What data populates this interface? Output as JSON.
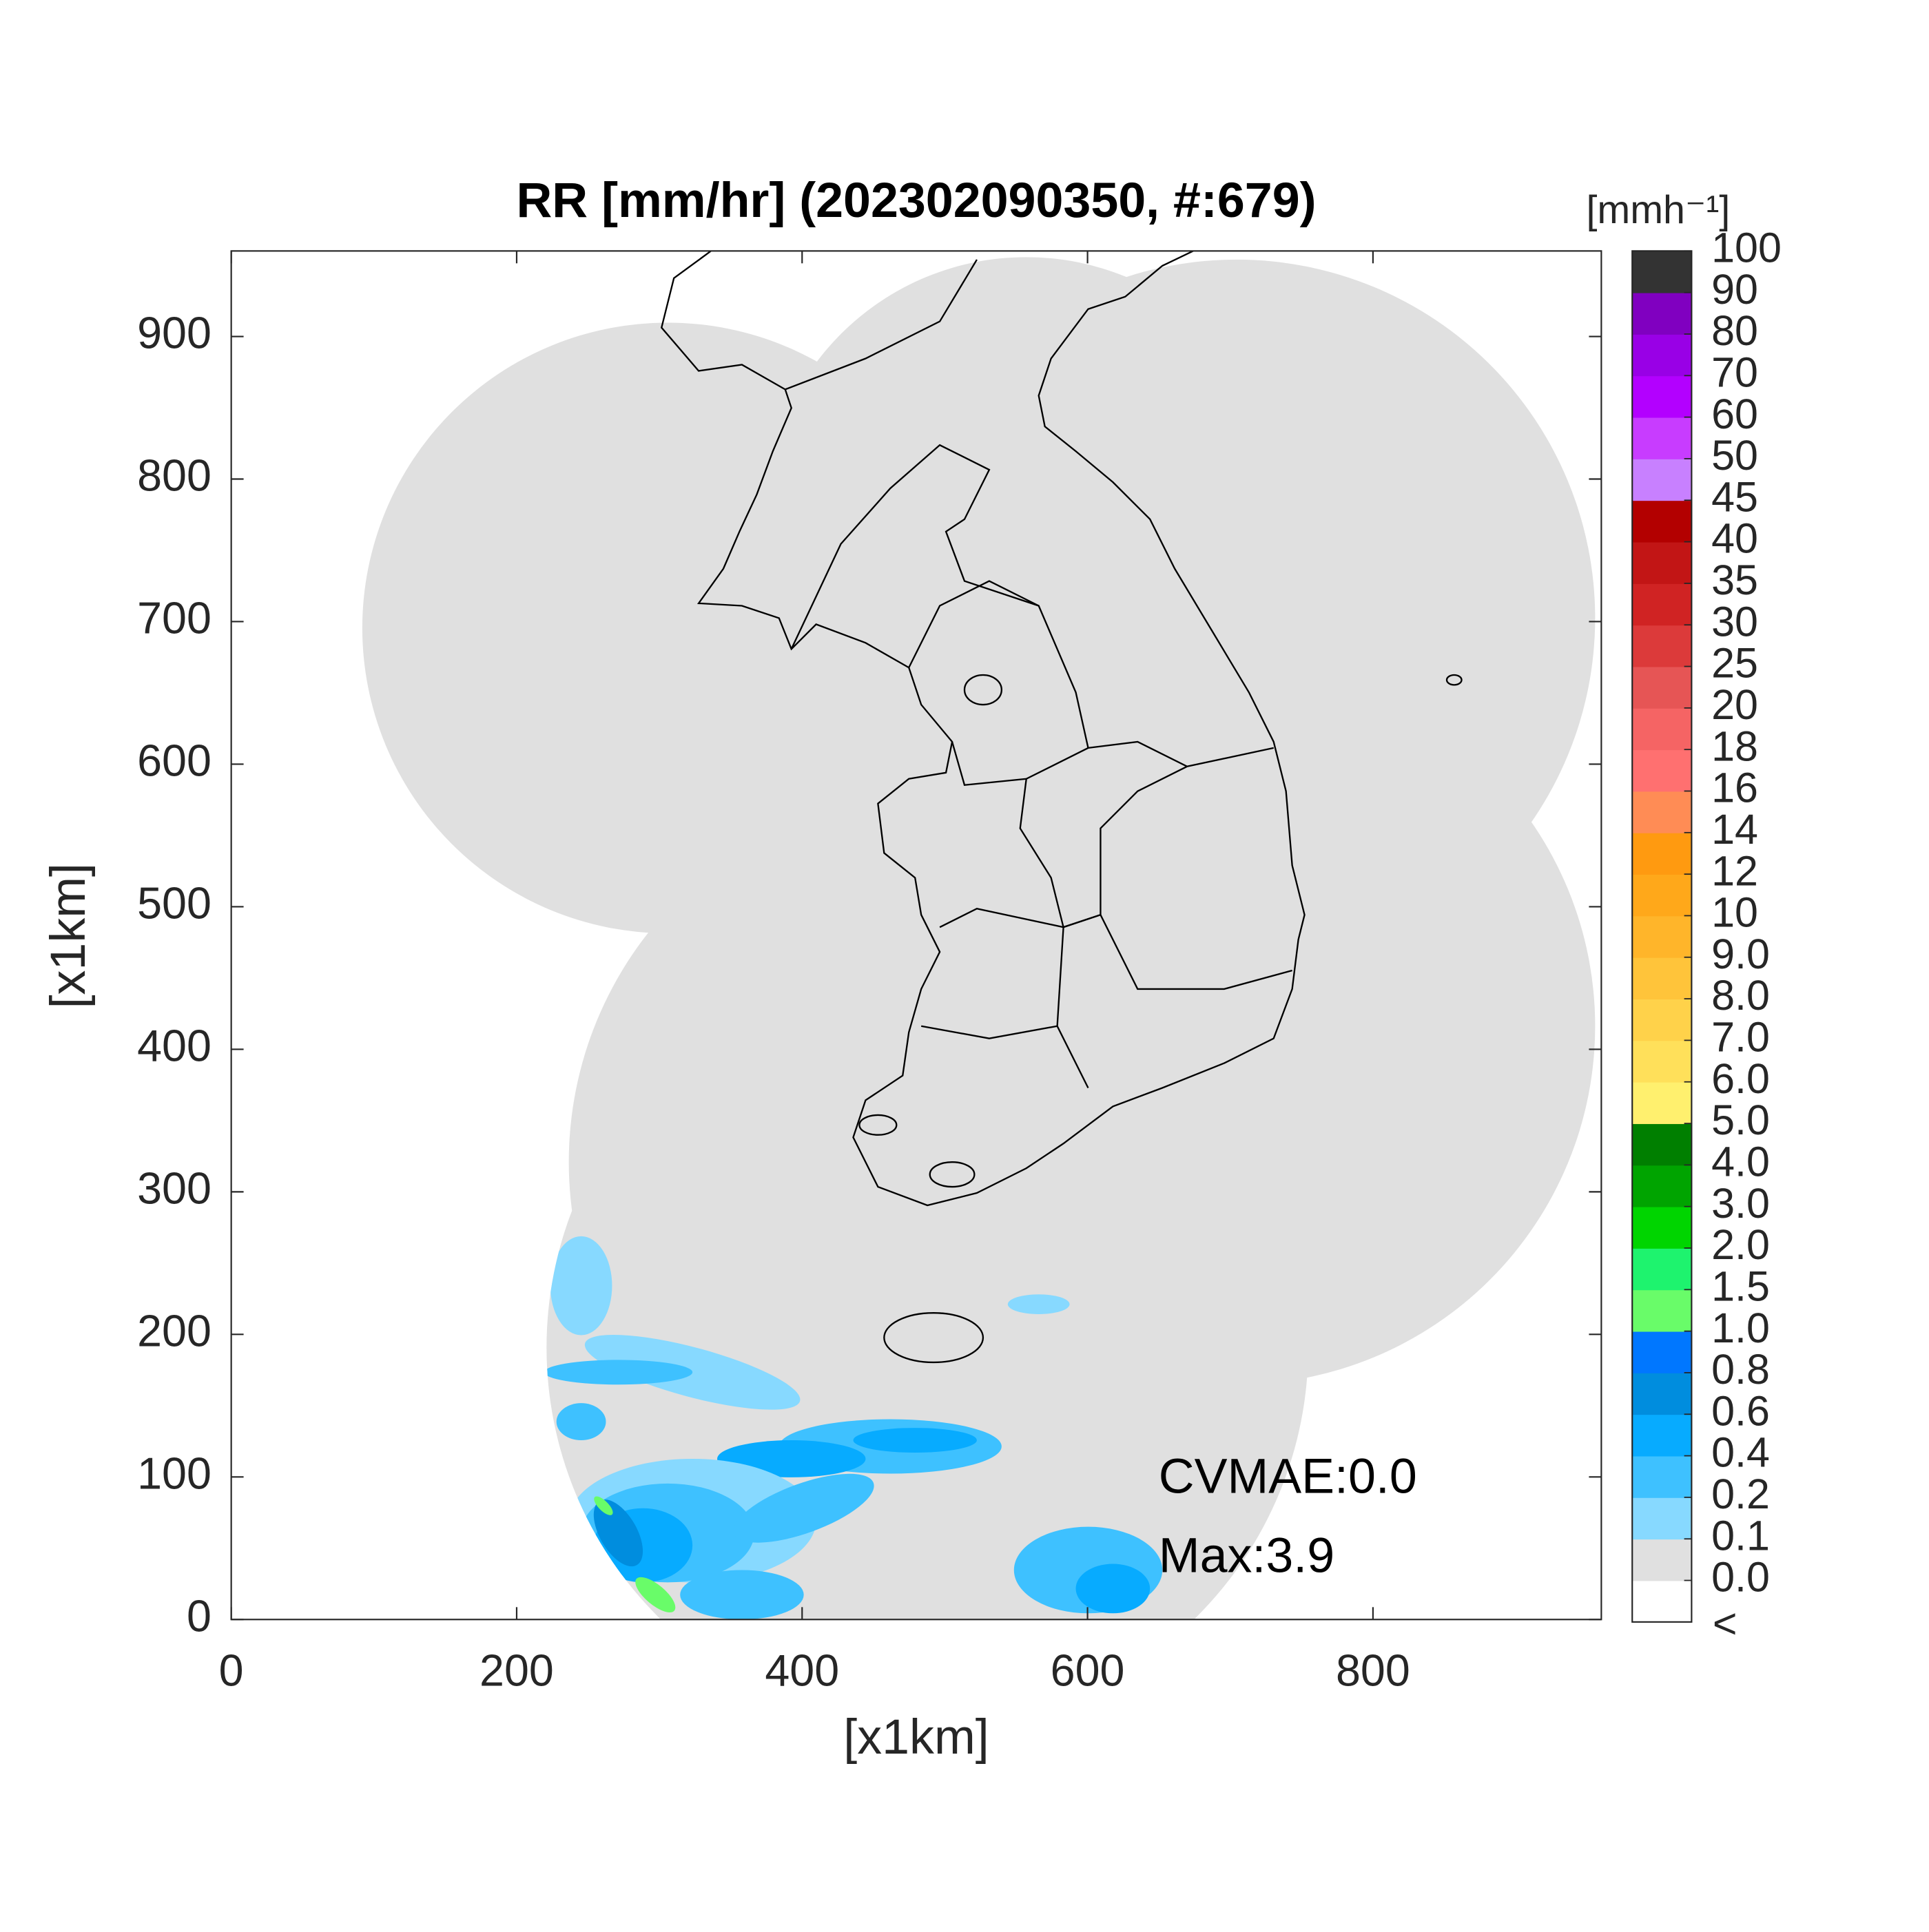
{
  "chart_data": {
    "type": "radar-map",
    "title": "RR [mm/hr] (202302090350, #:679)",
    "x_label": "[x1km]",
    "y_label": "[x1km]",
    "xlim": [
      0,
      960
    ],
    "ylim": [
      0,
      960
    ],
    "xticks": [
      0,
      200,
      400,
      600,
      800
    ],
    "yticks": [
      0,
      100,
      200,
      300,
      400,
      500,
      600,
      700,
      800,
      900
    ],
    "annotations": [
      "CVMAE:0.0",
      "Max:3.9"
    ],
    "colorbar": {
      "label": "[mmh⁻¹]",
      "under_label": "<",
      "levels": [
        {
          "value": 0,
          "label": "0.0"
        },
        0.1,
        0.2,
        0.4,
        0.6,
        0.8,
        {
          "value": 1,
          "label": "1.0"
        },
        1.5,
        {
          "value": 2,
          "label": "2.0"
        },
        {
          "value": 3,
          "label": "3.0"
        },
        {
          "value": 4,
          "label": "4.0"
        },
        {
          "value": 5,
          "label": "5.0"
        },
        {
          "value": 6,
          "label": "6.0"
        },
        {
          "value": 7,
          "label": "7.0"
        },
        {
          "value": 8,
          "label": "8.0"
        },
        {
          "value": 9,
          "label": "9.0"
        },
        10,
        12,
        14,
        16,
        18,
        20,
        25,
        30,
        35,
        40,
        45,
        50,
        60,
        70,
        80,
        90,
        100
      ],
      "colors": [
        "#ffffff",
        "#e0e0e0",
        "#87d9ff",
        "#3ec1ff",
        "#07abff",
        "#008dde",
        "#0077ff",
        "#69fc69",
        "#1ef36e",
        "#00d500",
        "#00a400",
        "#007f00",
        "#fff06e",
        "#ffe05a",
        "#ffd24a",
        "#ffc43a",
        "#ffb52a",
        "#ffa81a",
        "#ff9a10",
        "#ff8c55",
        "#ff7070",
        "#f56464",
        "#e65555",
        "#dc3a3a",
        "#d02323",
        "#c21515",
        "#b30000",
        "#c880ff",
        "#c83cff",
        "#b300ff",
        "#9900e6",
        "#8000c0",
        "#333333"
      ]
    }
  }
}
